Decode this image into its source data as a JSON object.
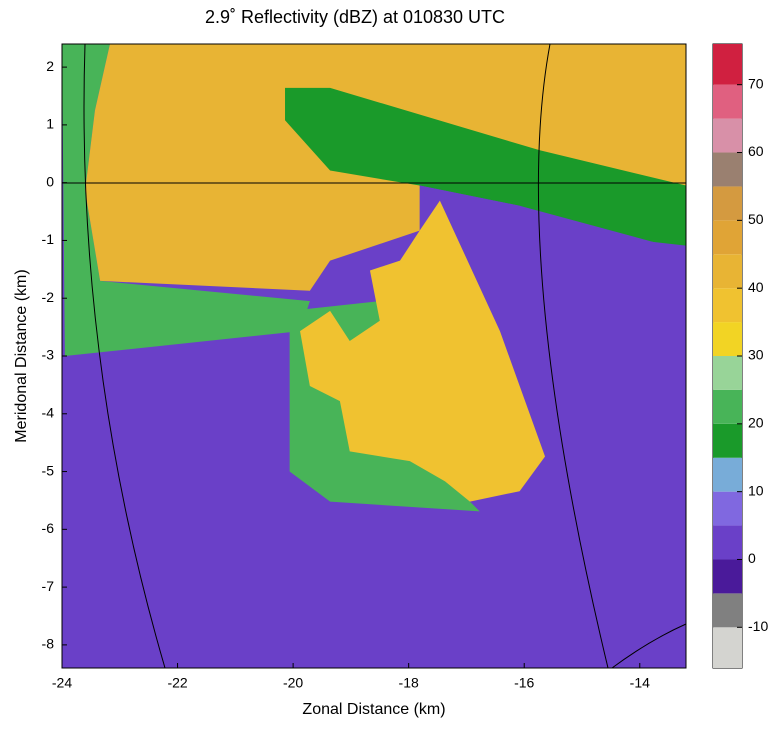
{
  "chart_data": {
    "type": "radar-field",
    "title": "2.9˚ Reflectivity (dBZ) at 010830 UTC",
    "xlabel": "Zonal Distance (km)",
    "ylabel": "Meridonal Distance (km)",
    "xlim": [
      -24,
      -13.2
    ],
    "ylim": [
      -8.4,
      2.4
    ],
    "xticks": [
      -24,
      -22,
      -20,
      -18,
      -16,
      -14
    ],
    "yticks": [
      -8,
      -7,
      -6,
      -5,
      -4,
      -3,
      -2,
      -1,
      0,
      1,
      2
    ],
    "colorbar": {
      "levels": [
        -16,
        -10,
        -5,
        0,
        5,
        10,
        15,
        20,
        25,
        30,
        35,
        40,
        45,
        50,
        55,
        60,
        65,
        70,
        76
      ],
      "colors": [
        "#d4d4d0",
        "#808080",
        "#4a1a9a",
        "#6a40c8",
        "#8068e0",
        "#78acd8",
        "#1a9a2a",
        "#48b458",
        "#98d498",
        "#f2d424",
        "#f0c230",
        "#e8b434",
        "#e0a436",
        "#d49a40",
        "#9a8070",
        "#d890a8",
        "#e06080",
        "#d02040"
      ],
      "ticks": [
        -10,
        0,
        10,
        20,
        30,
        40,
        50,
        60,
        70
      ]
    },
    "regions": [
      {
        "value": 4,
        "points": [
          [
            -24,
            2.4
          ],
          [
            -13.2,
            2.4
          ],
          [
            -13.2,
            -8.4
          ],
          [
            -24,
            -8.4
          ]
        ]
      },
      {
        "value": 22,
        "points": [
          [
            -24,
            2.4
          ],
          [
            -23.17,
            2.4
          ],
          [
            -23.43,
            1.25
          ],
          [
            -23.6,
            -0.14
          ],
          [
            -23.34,
            -1.7
          ],
          [
            -19.71,
            -2.05
          ],
          [
            -19.88,
            -2.57
          ],
          [
            -23.95,
            -3.0
          ]
        ]
      },
      {
        "value": 20,
        "points": [
          [
            -20.06,
            -2.22
          ],
          [
            -18.5,
            -2.05
          ],
          [
            -18.15,
            -4.48
          ],
          [
            -17.46,
            -5.0
          ],
          [
            -16.77,
            -5.69
          ],
          [
            -19.36,
            -5.52
          ],
          [
            -20.06,
            -5.0
          ]
        ]
      },
      {
        "value": 42,
        "points": [
          [
            -23.17,
            2.4
          ],
          [
            -13.2,
            2.4
          ],
          [
            -13.2,
            -0.57
          ],
          [
            -15.73,
            -0.22
          ],
          [
            -17.81,
            -0.05
          ],
          [
            -17.81,
            -0.83
          ],
          [
            -19.36,
            -1.35
          ],
          [
            -19.71,
            -1.87
          ],
          [
            -23.34,
            -1.7
          ],
          [
            -23.6,
            -0.14
          ],
          [
            -23.43,
            1.25
          ]
        ]
      },
      {
        "value": 18,
        "points": [
          [
            -20.14,
            1.64
          ],
          [
            -19.36,
            1.64
          ],
          [
            -15.73,
            0.56
          ],
          [
            -13.2,
            -0.05
          ],
          [
            -13.2,
            -1.09
          ],
          [
            -14.69,
            -0.92
          ],
          [
            -16.08,
            -0.4
          ],
          [
            -17.81,
            -0.05
          ],
          [
            -19.36,
            0.21
          ],
          [
            -20.14,
            1.08
          ]
        ]
      },
      {
        "value": 1,
        "points": [
          [
            -17.81,
            -0.05
          ],
          [
            -16.08,
            -0.4
          ],
          [
            -13.2,
            -1.18
          ],
          [
            -13.2,
            -8.4
          ],
          [
            -14.69,
            -8.4
          ],
          [
            -15.38,
            -6.56
          ],
          [
            -15.64,
            -4.82
          ],
          [
            -16.94,
            -1.52
          ],
          [
            -17.63,
            -0.48
          ]
        ]
      },
      {
        "value": 38,
        "points": [
          [
            -17.81,
            -0.83
          ],
          [
            -17.46,
            -0.31
          ],
          [
            -16.94,
            -1.44
          ],
          [
            -16.42,
            -2.57
          ],
          [
            -15.64,
            -4.74
          ],
          [
            -16.08,
            -5.34
          ],
          [
            -16.94,
            -5.52
          ],
          [
            -17.37,
            -5.17
          ],
          [
            -17.98,
            -4.82
          ],
          [
            -19.02,
            -4.65
          ],
          [
            -19.19,
            -3.78
          ],
          [
            -19.71,
            -3.52
          ],
          [
            -19.88,
            -2.57
          ],
          [
            -19.36,
            -2.22
          ],
          [
            -19.02,
            -2.74
          ],
          [
            -18.5,
            -2.39
          ],
          [
            -18.67,
            -1.52
          ],
          [
            -18.15,
            -1.35
          ]
        ]
      }
    ]
  }
}
